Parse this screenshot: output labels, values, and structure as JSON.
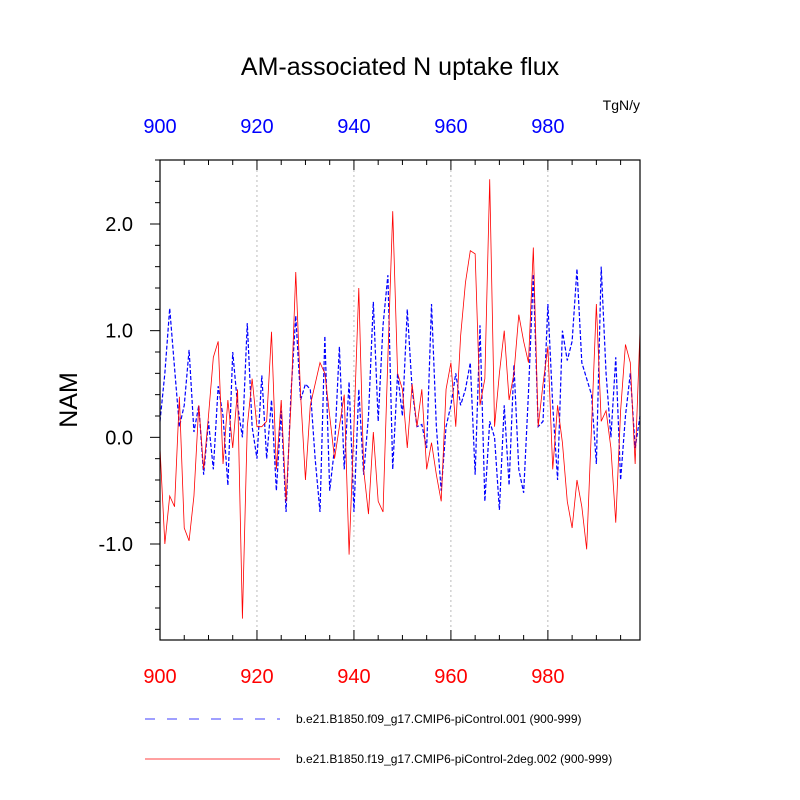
{
  "chart_data": {
    "type": "line",
    "title": "AM-associated N uptake flux",
    "ylabel": "NAM",
    "units": "TgN/y",
    "xlim": [
      900,
      999
    ],
    "ylim": [
      -1.9,
      2.6
    ],
    "x_ticks": [
      900,
      920,
      940,
      960,
      980
    ],
    "y_ticks": [
      {
        "value": 2.0,
        "label": "2.0"
      },
      {
        "value": 1.0,
        "label": "1.0"
      },
      {
        "value": 0.0,
        "label": "0.0"
      },
      {
        "value": -1.0,
        "label": "-1.0"
      }
    ],
    "vertical_gridlines": [
      920,
      940,
      960,
      980
    ],
    "x_start": 900,
    "series": [
      {
        "name": "b.e21.B1850.f09_g17.CMIP6-piControl.001 (900-999)",
        "color": "#0000ff",
        "dash": "dashed",
        "axis_color": "#0000ff",
        "values": [
          0.15,
          0.6,
          1.21,
          0.65,
          0.1,
          0.3,
          0.82,
          0.05,
          0.3,
          -0.35,
          0.15,
          -0.3,
          0.48,
          0.2,
          -0.45,
          0.8,
          0.3,
          0.0,
          1.07,
          0.1,
          -0.2,
          0.58,
          -0.2,
          0.35,
          -0.5,
          0.25,
          -0.7,
          0.4,
          1.14,
          0.35,
          0.5,
          0.45,
          -0.2,
          -0.7,
          0.95,
          -0.5,
          -0.1,
          0.85,
          -0.3,
          0.52,
          -0.7,
          0.45,
          -0.35,
          0.2,
          1.27,
          0.15,
          1.05,
          1.52,
          -0.3,
          0.6,
          0.2,
          1.2,
          0.45,
          0.1,
          0.12,
          -0.1,
          1.25,
          0.1,
          -0.5,
          0.1,
          0.3,
          0.6,
          0.3,
          0.45,
          0.7,
          -0.35,
          1.05,
          -0.6,
          0.15,
          0.0,
          -0.68,
          0.3,
          -0.45,
          0.68,
          -0.3,
          -0.52,
          0.42,
          1.53,
          0.1,
          0.15,
          1.25,
          0.3,
          -0.4,
          1.0,
          0.72,
          0.9,
          1.58,
          0.7,
          0.55,
          0.4,
          -0.25,
          1.6,
          0.6,
          0.0,
          0.75,
          -0.4,
          0.2,
          0.6,
          -0.1,
          0.2
        ]
      },
      {
        "name": "b.e21.B1850.f19_g17.CMIP6-piControl-2deg.002 (900-999)",
        "color": "#ff0000",
        "dash": "solid",
        "axis_color": "#ff0000",
        "values": [
          -0.1,
          -1.0,
          -0.55,
          -0.65,
          0.38,
          -0.85,
          -0.97,
          -0.55,
          0.3,
          -0.3,
          0.2,
          0.75,
          0.9,
          -0.25,
          0.35,
          -0.1,
          0.45,
          -1.7,
          0.1,
          0.55,
          0.1,
          0.1,
          0.15,
          0.99,
          -0.3,
          0.35,
          -0.6,
          0.3,
          1.55,
          0.4,
          -0.4,
          0.3,
          0.5,
          0.7,
          0.6,
          0.2,
          -0.2,
          0.1,
          0.4,
          -1.1,
          0.1,
          1.4,
          -0.3,
          -0.72,
          0.05,
          -0.6,
          -0.7,
          0.75,
          2.12,
          0.6,
          0.45,
          -0.1,
          0.5,
          0.1,
          0.45,
          -0.3,
          -0.05,
          -0.35,
          -0.6,
          0.45,
          0.7,
          0.1,
          0.95,
          1.45,
          1.75,
          1.72,
          0.3,
          0.55,
          2.42,
          0.1,
          0.6,
          1.0,
          0.35,
          0.6,
          1.15,
          0.9,
          0.7,
          1.78,
          0.1,
          0.5,
          0.85,
          -0.3,
          0.3,
          -0.05,
          -0.6,
          -0.85,
          -0.4,
          -0.65,
          -1.05,
          0.1,
          1.25,
          0.15,
          0.25,
          -0.1,
          -0.8,
          0.25,
          0.87,
          0.7,
          -0.25,
          1.0
        ]
      }
    ]
  }
}
